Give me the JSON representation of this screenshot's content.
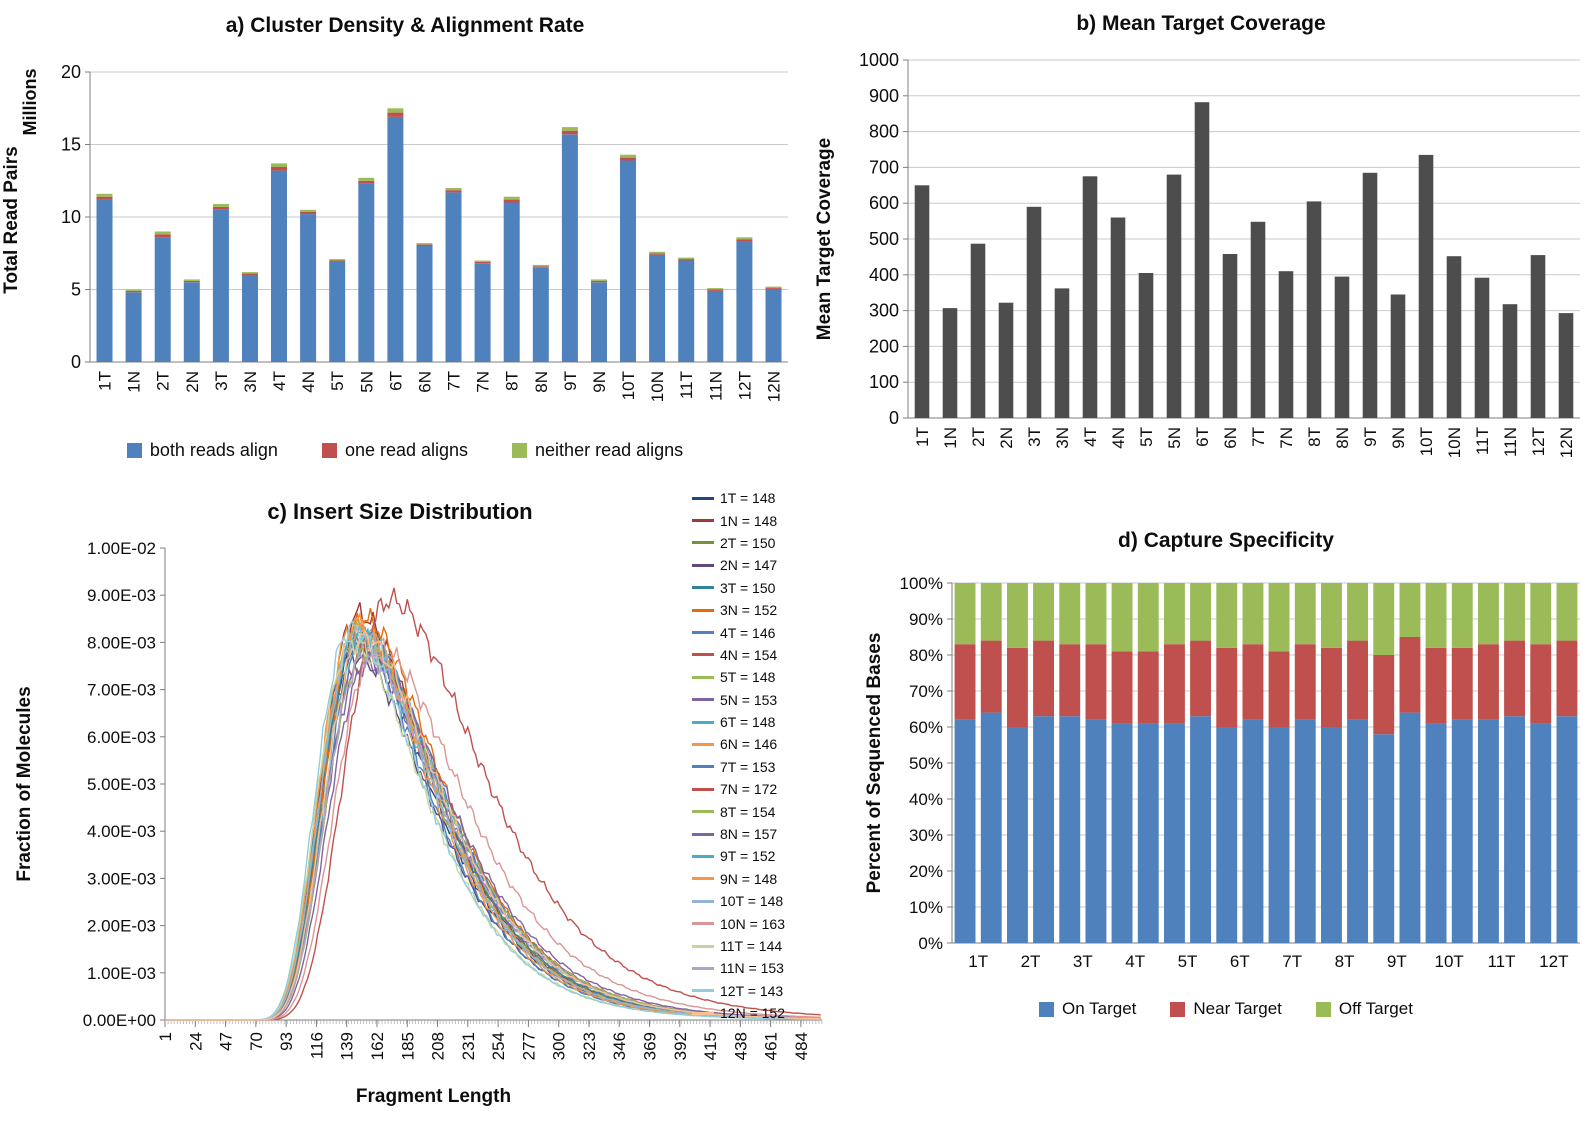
{
  "panels": {
    "a": {
      "title": "a) Cluster Density & Alignment Rate"
    },
    "b": {
      "title": "b) Mean Target Coverage"
    },
    "c": {
      "title": "c) Insert Size Distribution"
    },
    "d": {
      "title": "d) Capture Specificity"
    }
  },
  "chart_data": [
    {
      "id": "cluster_density_alignment_rate",
      "type": "bar",
      "stacked": true,
      "title": "a) Cluster Density & Alignment Rate",
      "ylabel": "Total Read Pairs",
      "y_units": "Millions",
      "ylim": [
        0,
        20
      ],
      "ytick_step": 5,
      "grid": true,
      "legend_position": "bottom",
      "categories": [
        "1T",
        "1N",
        "2T",
        "2N",
        "3T",
        "3N",
        "4T",
        "4N",
        "5T",
        "5N",
        "6T",
        "6N",
        "7T",
        "7N",
        "8T",
        "8N",
        "9T",
        "9N",
        "10T",
        "10N",
        "11T",
        "11N",
        "12T",
        "12N"
      ],
      "series": [
        {
          "name": "both reads align",
          "color": "#4F81BD",
          "values": [
            11.2,
            4.8,
            8.6,
            5.5,
            10.5,
            6.0,
            13.2,
            10.2,
            6.9,
            12.3,
            16.9,
            8.0,
            11.7,
            6.8,
            11.0,
            6.5,
            15.7,
            5.5,
            13.9,
            7.4,
            7.0,
            4.9,
            8.3,
            5.0
          ]
        },
        {
          "name": "one read aligns",
          "color": "#C0504D",
          "values": [
            0.2,
            0.1,
            0.2,
            0.1,
            0.2,
            0.1,
            0.25,
            0.15,
            0.1,
            0.2,
            0.3,
            0.1,
            0.15,
            0.1,
            0.2,
            0.1,
            0.25,
            0.1,
            0.2,
            0.1,
            0.1,
            0.1,
            0.15,
            0.1
          ]
        },
        {
          "name": "neither read aligns",
          "color": "#9BBB59",
          "values": [
            0.2,
            0.1,
            0.2,
            0.1,
            0.2,
            0.1,
            0.25,
            0.15,
            0.1,
            0.2,
            0.3,
            0.1,
            0.15,
            0.1,
            0.2,
            0.1,
            0.25,
            0.1,
            0.2,
            0.1,
            0.1,
            0.1,
            0.15,
            0.1
          ]
        }
      ]
    },
    {
      "id": "mean_target_coverage",
      "type": "bar",
      "title": "b) Mean Target Coverage",
      "ylabel": "Mean Target Coverage",
      "ylim": [
        0,
        1000
      ],
      "ytick_step": 100,
      "grid": true,
      "bar_color": "#4D4D4D",
      "categories": [
        "1T",
        "1N",
        "2T",
        "2N",
        "3T",
        "3N",
        "4T",
        "4N",
        "5T",
        "5N",
        "6T",
        "6N",
        "7T",
        "7N",
        "8T",
        "8N",
        "9T",
        "9N",
        "10T",
        "10N",
        "11T",
        "11N",
        "12T",
        "12N"
      ],
      "values": [
        650,
        307,
        487,
        322,
        590,
        362,
        675,
        560,
        405,
        680,
        882,
        458,
        548,
        410,
        605,
        395,
        685,
        345,
        735,
        452,
        392,
        318,
        455,
        293
      ]
    },
    {
      "id": "insert_size_distribution",
      "type": "line",
      "title": "c) Insert Size Distribution",
      "xlabel": "Fragment Length",
      "ylabel": "Fraction of Molecules",
      "xlim": [
        1,
        500
      ],
      "ylim": [
        0,
        0.01
      ],
      "grid": false,
      "legend_position": "right",
      "xticks": [
        1,
        24,
        47,
        70,
        93,
        116,
        139,
        162,
        185,
        208,
        231,
        254,
        277,
        300,
        323,
        346,
        369,
        392,
        415,
        438,
        461,
        484
      ],
      "series": [
        {
          "name": "1T",
          "label": "1T = 148",
          "mode": 148,
          "peak": 0.008,
          "color": "#1F497D"
        },
        {
          "name": "1N",
          "label": "1N = 148",
          "mode": 148,
          "peak": 0.0086,
          "color": "#9E3B38"
        },
        {
          "name": "2T",
          "label": "2T = 150",
          "mode": 150,
          "peak": 0.0081,
          "color": "#76933C"
        },
        {
          "name": "2N",
          "label": "2N = 147",
          "mode": 147,
          "peak": 0.0077,
          "color": "#5F497A"
        },
        {
          "name": "3T",
          "label": "3T = 150",
          "mode": 150,
          "peak": 0.0082,
          "color": "#31849B"
        },
        {
          "name": "3N",
          "label": "3N = 152",
          "mode": 152,
          "peak": 0.0085,
          "color": "#E36C0A"
        },
        {
          "name": "4T",
          "label": "4T = 146",
          "mode": 146,
          "peak": 0.0081,
          "color": "#4F81BD"
        },
        {
          "name": "4N",
          "label": "4N = 154",
          "mode": 154,
          "peak": 0.0079,
          "color": "#C0504D"
        },
        {
          "name": "5T",
          "label": "5T = 148",
          "mode": 148,
          "peak": 0.0083,
          "color": "#9BBB59"
        },
        {
          "name": "5N",
          "label": "5N = 153",
          "mode": 153,
          "peak": 0.0076,
          "color": "#8064A2"
        },
        {
          "name": "6T",
          "label": "6T = 148",
          "mode": 148,
          "peak": 0.0082,
          "color": "#4BACC6"
        },
        {
          "name": "6N",
          "label": "6N = 146",
          "mode": 146,
          "peak": 0.0084,
          "color": "#F79646"
        },
        {
          "name": "7T",
          "label": "7T = 153",
          "mode": 153,
          "peak": 0.008,
          "color": "#4F81BD"
        },
        {
          "name": "7N",
          "label": "7N = 172",
          "mode": 172,
          "peak": 0.0089,
          "color": "#C0504D"
        },
        {
          "name": "8T",
          "label": "8T = 154",
          "mode": 154,
          "peak": 0.0078,
          "color": "#9BBB59"
        },
        {
          "name": "8N",
          "label": "8N = 157",
          "mode": 157,
          "peak": 0.0076,
          "color": "#8064A2"
        },
        {
          "name": "9T",
          "label": "9T = 152",
          "mode": 152,
          "peak": 0.0081,
          "color": "#4BACC6"
        },
        {
          "name": "9N",
          "label": "9N = 148",
          "mode": 148,
          "peak": 0.0083,
          "color": "#F79646"
        },
        {
          "name": "10T",
          "label": "10T = 148",
          "mode": 148,
          "peak": 0.0082,
          "color": "#95B3D7"
        },
        {
          "name": "10N",
          "label": "10N = 163",
          "mode": 163,
          "peak": 0.0079,
          "color": "#D99694"
        },
        {
          "name": "11T",
          "label": "11T = 144",
          "mode": 144,
          "peak": 0.008,
          "color": "#C3D69B"
        },
        {
          "name": "11N",
          "label": "11N = 153",
          "mode": 153,
          "peak": 0.0077,
          "color": "#B2A2C7"
        },
        {
          "name": "12T",
          "label": "12T = 143",
          "mode": 143,
          "peak": 0.0083,
          "color": "#92CDDC"
        },
        {
          "name": "12N",
          "label": "12N = 152",
          "mode": 152,
          "peak": 0.0081,
          "color": "#FAC08F"
        }
      ]
    },
    {
      "id": "capture_specificity",
      "type": "bar",
      "stacked": true,
      "percent": true,
      "title": "d) Capture Specificity",
      "ylabel": "Percent of Sequenced Bases",
      "ylim": [
        0,
        100
      ],
      "ytick_step": 10,
      "grid": true,
      "legend_position": "bottom",
      "categories": [
        "1T",
        "1N",
        "2T",
        "2N",
        "3T",
        "3N",
        "4T",
        "4N",
        "5T",
        "5N",
        "6T",
        "6N",
        "7T",
        "7N",
        "8T",
        "8N",
        "9T",
        "9N",
        "10T",
        "10N",
        "11T",
        "11N",
        "12T",
        "12N"
      ],
      "xtick_labels": [
        "1T",
        "2T",
        "3T",
        "4T",
        "5T",
        "6T",
        "7T",
        "8T",
        "9T",
        "10T",
        "11T",
        "12T"
      ],
      "series": [
        {
          "name": "On Target",
          "color": "#4F81BD",
          "values": [
            62,
            64,
            60,
            63,
            63,
            62,
            61,
            61,
            61,
            63,
            60,
            62,
            60,
            62,
            60,
            62,
            58,
            64,
            61,
            62,
            62,
            63,
            61,
            63
          ]
        },
        {
          "name": "Near Target",
          "color": "#C0504D",
          "values": [
            21,
            20,
            22,
            21,
            20,
            21,
            20,
            20,
            22,
            21,
            22,
            21,
            21,
            21,
            22,
            22,
            22,
            21,
            21,
            20,
            21,
            21,
            22,
            21
          ]
        },
        {
          "name": "Off Target",
          "color": "#9BBB59",
          "values": [
            17,
            16,
            18,
            16,
            17,
            17,
            19,
            19,
            17,
            16,
            18,
            17,
            19,
            17,
            18,
            16,
            20,
            15,
            18,
            18,
            17,
            16,
            17,
            16
          ]
        }
      ]
    }
  ]
}
